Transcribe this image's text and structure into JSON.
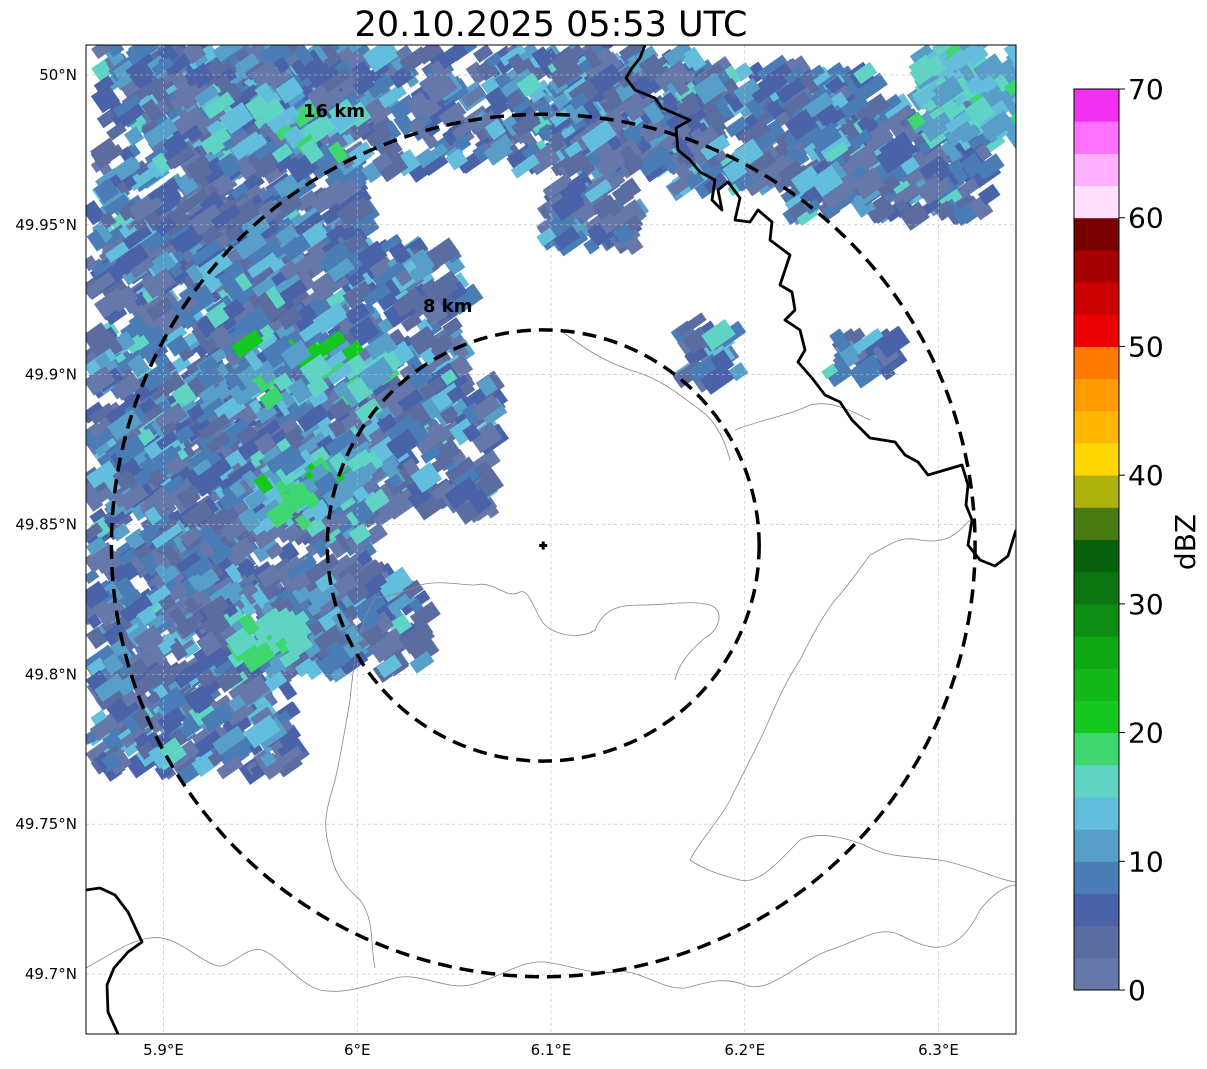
{
  "map": {
    "title": "20.10.2025 05:53 UTC",
    "extent": {
      "lon_min": 5.86,
      "lon_max": 6.34,
      "lat_min": 49.68,
      "lat_max": 50.01
    },
    "radar_site": {
      "lon": 6.096,
      "lat": 49.843
    },
    "range_rings": [
      {
        "label": "8 km",
        "radius_km": 8
      },
      {
        "label": "16 km",
        "radius_km": 16
      }
    ],
    "lon_ticks": [
      {
        "value": 5.9,
        "label": "5.9°E"
      },
      {
        "value": 6.0,
        "label": "6°E"
      },
      {
        "value": 6.1,
        "label": "6.1°E"
      },
      {
        "value": 6.2,
        "label": "6.2°E"
      },
      {
        "value": 6.3,
        "label": "6.3°E"
      }
    ],
    "lat_ticks": [
      {
        "value": 50.0,
        "label": "50°N"
      },
      {
        "value": 49.95,
        "label": "49.95°N"
      },
      {
        "value": 49.9,
        "label": "49.9°N"
      },
      {
        "value": 49.85,
        "label": "49.85°N"
      },
      {
        "value": 49.8,
        "label": "49.8°N"
      },
      {
        "value": 49.75,
        "label": "49.75°N"
      },
      {
        "value": 49.7,
        "label": "49.7°N"
      }
    ],
    "grid": true
  },
  "colorbar": {
    "label": "dBZ",
    "ticks": [
      {
        "value": 0,
        "label": "0"
      },
      {
        "value": 10,
        "label": "10"
      },
      {
        "value": 20,
        "label": "20"
      },
      {
        "value": 30,
        "label": "30"
      },
      {
        "value": 40,
        "label": "40"
      },
      {
        "value": 50,
        "label": "50"
      },
      {
        "value": 60,
        "label": "60"
      },
      {
        "value": 70,
        "label": "70"
      }
    ],
    "colors": [
      "#6677aa",
      "#5a6ca0",
      "#4a62a8",
      "#4a7cb5",
      "#579ec8",
      "#62bedc",
      "#5fd3c4",
      "#3dd66f",
      "#15c81e",
      "#11b818",
      "#0fa714",
      "#0c8e12",
      "#0b7510",
      "#07600b",
      "#4a7a10",
      "#aeb00c",
      "#ffd700",
      "#ffb800",
      "#ff9d00",
      "#ff7b00",
      "#ec0000",
      "#cd0000",
      "#a60000",
      "#7a0000",
      "#ffe0ff",
      "#ffb0ff",
      "#ff70ff",
      "#f230f2"
    ]
  }
}
